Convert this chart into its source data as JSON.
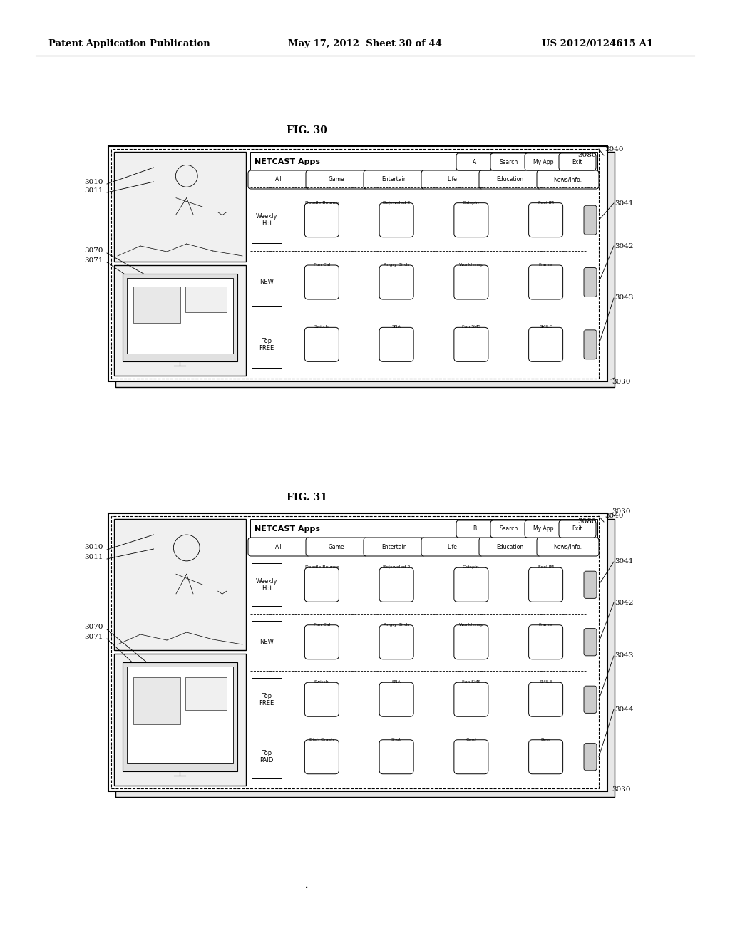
{
  "header_left": "Patent Application Publication",
  "header_mid": "May 17, 2012  Sheet 30 of 44",
  "header_right": "US 2012/0124615 A1",
  "bg_color": "#ffffff",
  "line_color": "#000000",
  "fig30": {
    "label": "FIG. 30",
    "title": "NETCAST Apps",
    "nav_buttons": [
      "A",
      "Search",
      "My App",
      "Exit"
    ],
    "tabs": [
      "All",
      "Game",
      "Entertain",
      "Life",
      "Education",
      "News/Info."
    ],
    "rows": [
      {
        "label": "Weekly\nHot",
        "apps": [
          "Doodle Bounce",
          "Bejeweled 2",
          "Catspin",
          "Feel IM"
        ]
      },
      {
        "label": "NEW",
        "apps": [
          "Fun Cal",
          "Angry Birds",
          "World map",
          "Frame"
        ]
      },
      {
        "label": "Top\nFREE",
        "apps": [
          "Switch",
          "SNA",
          "Fun SMS",
          "SMILE"
        ]
      }
    ]
  },
  "fig31": {
    "label": "FIG. 31",
    "title": "NETCAST Apps",
    "nav_buttons": [
      "B",
      "Search",
      "My App",
      "Exit"
    ],
    "tabs": [
      "All",
      "Game",
      "Entertain",
      "Life",
      "Education",
      "News/Info."
    ],
    "rows": [
      {
        "label": "Weekly\nHot",
        "apps": [
          "Doodle Bounce",
          "Bejeweled 2",
          "Catspin",
          "Feel IM"
        ]
      },
      {
        "label": "NEW",
        "apps": [
          "Fun Cal",
          "Angry Birds",
          "World map",
          "Frame"
        ]
      },
      {
        "label": "Top\nFREE",
        "apps": [
          "Switch",
          "SNA",
          "Fun SMS",
          "SMILE"
        ]
      },
      {
        "label": "Top\nPAID",
        "apps": [
          "Dish Crash",
          "Shot",
          "Card",
          "Beer"
        ]
      }
    ]
  }
}
